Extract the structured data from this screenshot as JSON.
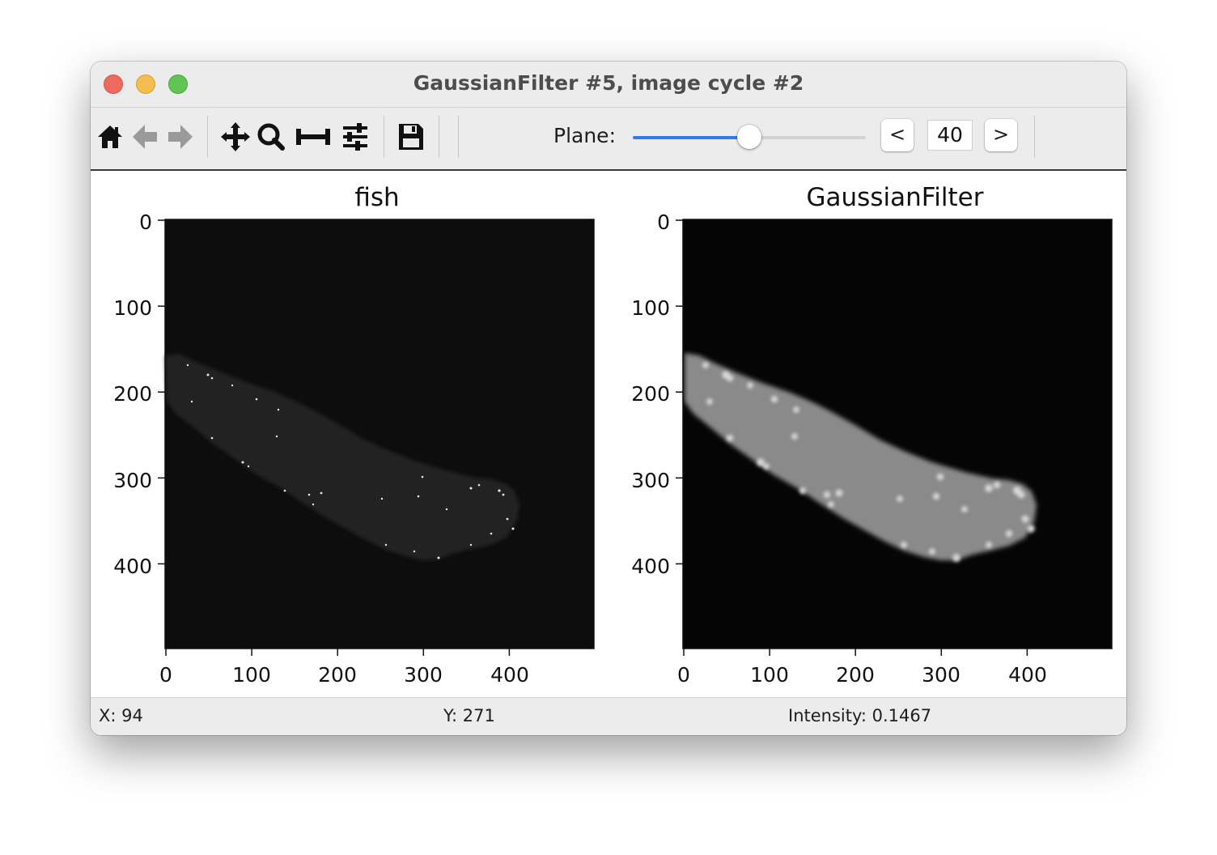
{
  "window": {
    "title": "GaussianFilter #5, image cycle #2"
  },
  "toolbar": {
    "icons": [
      "home-icon",
      "back-arrow-icon",
      "forward-arrow-icon",
      "pan-icon",
      "zoom-icon",
      "subplots-icon",
      "configure-icon",
      "save-icon"
    ],
    "plane_label": "Plane:",
    "plane_value": "40",
    "plane_fraction": 0.5,
    "prev_label": "<",
    "next_label": ">",
    "accent_color": "#3478f6"
  },
  "plots": [
    {
      "title": "fish",
      "y_ticks": [
        "0",
        "100",
        "200",
        "300",
        "400"
      ],
      "x_ticks": [
        "0",
        "100",
        "200",
        "300",
        "400"
      ]
    },
    {
      "title": "GaussianFilter",
      "y_ticks": [
        "0",
        "100",
        "200",
        "300",
        "400"
      ],
      "x_ticks": [
        "0",
        "100",
        "200",
        "300",
        "400"
      ]
    }
  ],
  "status": {
    "x": "X: 94",
    "y": "Y: 271",
    "intensity": "Intensity: 0.1467"
  }
}
